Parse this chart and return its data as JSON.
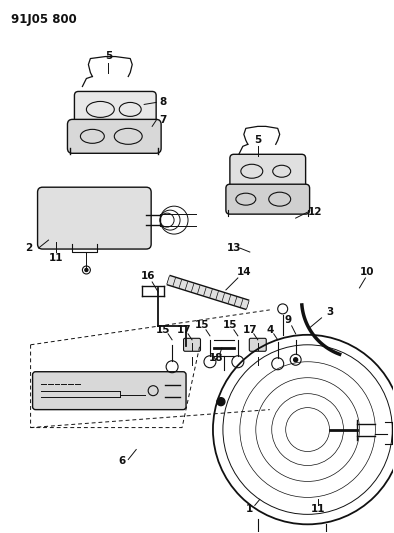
{
  "title": "91J05 800",
  "bg": "#ffffff",
  "lc": "#111111",
  "figsize": [
    3.94,
    5.33
  ],
  "dpi": 100,
  "xlim": [
    0,
    394
  ],
  "ylim": [
    0,
    533
  ]
}
